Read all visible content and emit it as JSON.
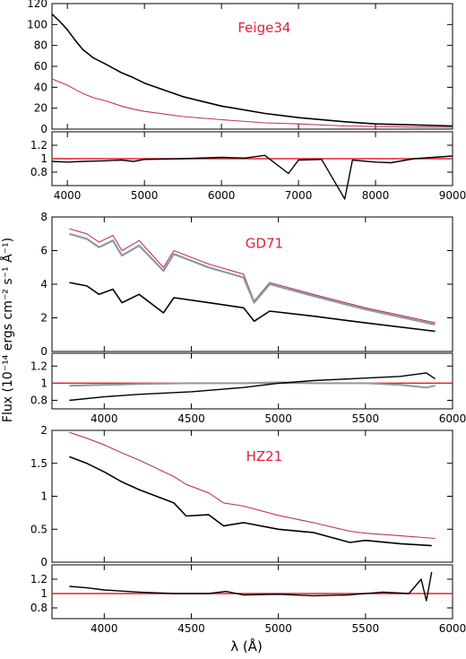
{
  "figure": {
    "ylabel": "Flux (10⁻¹⁴ ergs cm⁻² s⁻¹ Å⁻¹)",
    "xlabel": "λ (Å)",
    "colors": {
      "observed": "#000000",
      "model": "#c0306a",
      "alt_observed": "#8c9a9c",
      "unity_line": "#e8202a",
      "star_label": "#e0203a"
    }
  },
  "chart_data": [
    {
      "type": "line",
      "star": "Feige34",
      "xlim": [
        3800,
        9000
      ],
      "xticks": [
        4000,
        5000,
        6000,
        7000,
        8000,
        9000
      ],
      "ylim": [
        0,
        120
      ],
      "yticks": [
        0,
        20,
        40,
        60,
        80,
        100,
        120
      ],
      "series": [
        {
          "role": "observed",
          "x": [
            3800,
            3900,
            4000,
            4100,
            4200,
            4340,
            4500,
            4700,
            4861,
            5000,
            5500,
            6000,
            6563,
            7000,
            7600,
            8000,
            8500,
            9000
          ],
          "y": [
            110,
            103,
            95,
            85,
            76,
            68,
            62,
            54,
            49,
            44,
            31,
            22,
            15,
            11,
            7,
            5,
            4,
            3
          ]
        },
        {
          "role": "model",
          "x": [
            3800,
            3900,
            4000,
            4100,
            4200,
            4340,
            4500,
            4700,
            4861,
            5000,
            5500,
            6000,
            6563,
            7000,
            7600,
            8000,
            8500,
            9000
          ],
          "y": [
            48,
            45,
            42,
            38,
            34,
            30,
            27,
            22,
            19,
            17,
            12,
            9,
            6,
            5,
            3,
            2.5,
            2,
            1.8
          ]
        }
      ],
      "ratio": {
        "ylim": [
          0.6,
          1.4
        ],
        "yticks": [
          0.8,
          1.0,
          1.2
        ],
        "x": [
          3800,
          4000,
          4200,
          4500,
          4700,
          4861,
          5000,
          5500,
          6000,
          6300,
          6563,
          6870,
          7000,
          7300,
          7600,
          7700,
          8000,
          8200,
          8500,
          9000
        ],
        "y": [
          0.96,
          0.95,
          0.96,
          0.97,
          0.98,
          0.96,
          0.99,
          1.0,
          1.02,
          1.01,
          1.05,
          0.78,
          0.98,
          0.99,
          0.4,
          0.98,
          0.95,
          0.94,
          1.0,
          1.04
        ]
      }
    },
    {
      "type": "line",
      "star": "GD71",
      "xlim": [
        3700,
        6000
      ],
      "xticks": [
        4000,
        4500,
        5000,
        5500,
        6000
      ],
      "ylim": [
        0,
        8
      ],
      "yticks": [
        0,
        2,
        4,
        6,
        8
      ],
      "series": [
        {
          "role": "model",
          "x": [
            3800,
            3900,
            3970,
            4050,
            4102,
            4200,
            4340,
            4400,
            4600,
            4800,
            4861,
            4950,
            5200,
            5500,
            5900
          ],
          "y": [
            7.3,
            7.0,
            6.5,
            6.9,
            6.0,
            6.6,
            5.0,
            6.0,
            5.2,
            4.6,
            3.0,
            4.1,
            3.4,
            2.6,
            1.7
          ]
        },
        {
          "role": "alt_observed",
          "x": [
            3800,
            3900,
            3970,
            4050,
            4102,
            4200,
            4340,
            4400,
            4600,
            4800,
            4861,
            4950,
            5200,
            5500,
            5900
          ],
          "y": [
            7.0,
            6.7,
            6.2,
            6.6,
            5.7,
            6.3,
            4.8,
            5.8,
            5.0,
            4.4,
            2.9,
            4.0,
            3.3,
            2.5,
            1.6
          ]
        },
        {
          "role": "observed",
          "x": [
            3800,
            3900,
            3970,
            4050,
            4102,
            4200,
            4340,
            4400,
            4600,
            4800,
            4861,
            4950,
            5200,
            5500,
            5900
          ],
          "y": [
            4.1,
            3.9,
            3.4,
            3.7,
            2.9,
            3.4,
            2.3,
            3.2,
            2.9,
            2.6,
            1.8,
            2.4,
            2.1,
            1.7,
            1.2
          ]
        }
      ],
      "ratio": {
        "ylim": [
          0.7,
          1.35
        ],
        "yticks": [
          0.8,
          1.0,
          1.2
        ],
        "x": [
          3800,
          4000,
          4200,
          4500,
          4800,
          5000,
          5200,
          5500,
          5700,
          5850,
          5900
        ],
        "y": [
          0.8,
          0.84,
          0.87,
          0.9,
          0.95,
          1.0,
          1.03,
          1.06,
          1.08,
          1.12,
          1.05
        ],
        "alt_y": [
          0.97,
          0.98,
          0.99,
          1.0,
          1.0,
          1.01,
          1.0,
          1.0,
          0.98,
          0.95,
          0.97
        ]
      }
    },
    {
      "type": "line",
      "star": "HZ21",
      "xlim": [
        3700,
        6000
      ],
      "xticks": [
        4000,
        4500,
        5000,
        5500,
        6000
      ],
      "ylim": [
        0,
        2
      ],
      "yticks": [
        0.0,
        0.5,
        1.0,
        1.5,
        2.0
      ],
      "series": [
        {
          "role": "model",
          "x": [
            3800,
            3900,
            4000,
            4100,
            4200,
            4400,
            4471,
            4600,
            4686,
            4800,
            5000,
            5200,
            5411,
            5500,
            5700,
            5900
          ],
          "y": [
            1.97,
            1.88,
            1.78,
            1.66,
            1.55,
            1.3,
            1.18,
            1.05,
            0.9,
            0.85,
            0.71,
            0.6,
            0.47,
            0.44,
            0.4,
            0.36
          ]
        },
        {
          "role": "observed",
          "x": [
            3800,
            3900,
            4000,
            4100,
            4200,
            4400,
            4471,
            4600,
            4686,
            4800,
            5000,
            5200,
            5411,
            5500,
            5700,
            5880
          ],
          "y": [
            1.6,
            1.5,
            1.37,
            1.22,
            1.1,
            0.9,
            0.7,
            0.72,
            0.55,
            0.6,
            0.5,
            0.45,
            0.3,
            0.33,
            0.28,
            0.25
          ]
        }
      ],
      "ratio": {
        "ylim": [
          0.65,
          1.4
        ],
        "yticks": [
          0.8,
          1.0,
          1.2
        ],
        "x": [
          3800,
          3900,
          4000,
          4200,
          4400,
          4600,
          4700,
          4800,
          5000,
          5200,
          5400,
          5600,
          5750,
          5820,
          5850,
          5880
        ],
        "y": [
          1.1,
          1.08,
          1.05,
          1.02,
          1.0,
          1.0,
          1.03,
          0.98,
          0.99,
          0.97,
          0.98,
          1.02,
          1.0,
          1.2,
          0.9,
          1.3
        ]
      }
    }
  ]
}
